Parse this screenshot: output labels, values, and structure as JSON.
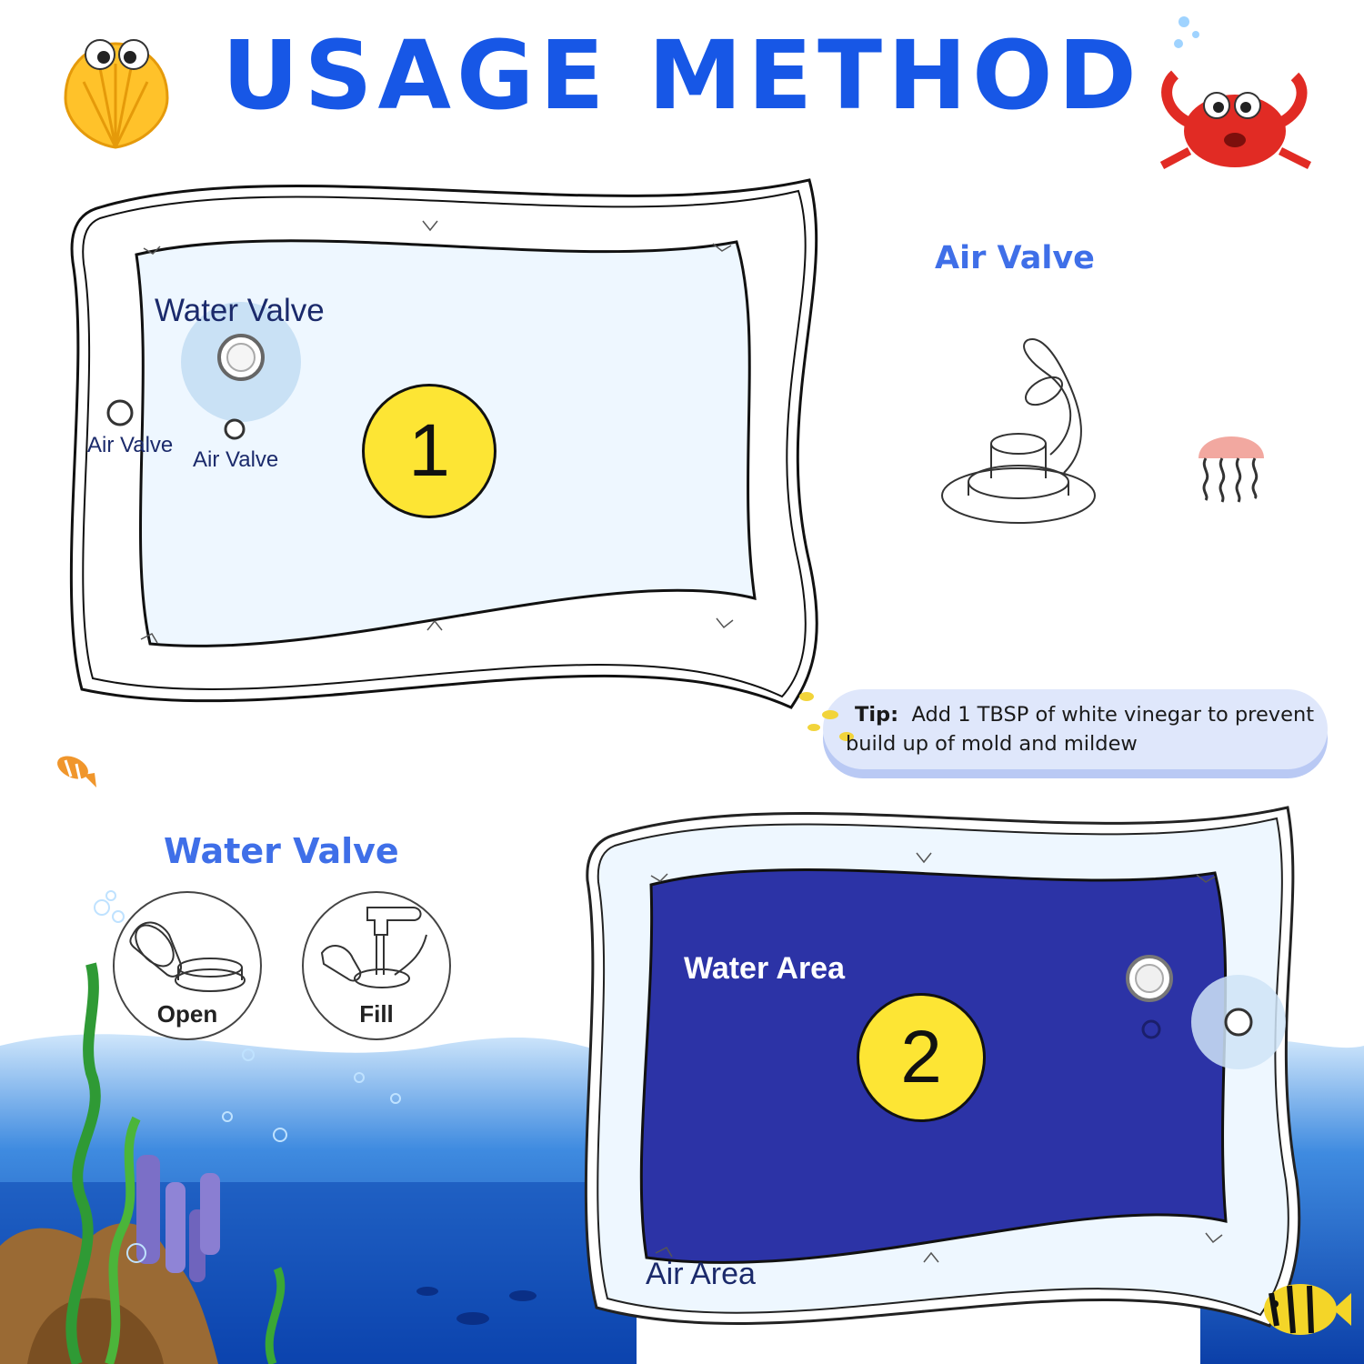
{
  "title": "USAGE METHOD",
  "colors": {
    "title_blue": "#1757e6",
    "heading_blue": "#3f6fe8",
    "mat_pale": "#eef7ff",
    "mat_water_blue": "#2c33a6",
    "number_badge": "#fde534",
    "ocean": "#1f6fd6",
    "tip_bubble": "#dfe7fb"
  },
  "step1": {
    "number": "1",
    "water_valve_label": "Water Valve",
    "air_valve_left_label": "Air Valve",
    "air_valve_right_label": "Air Valve"
  },
  "air_valve_panel": {
    "heading": "Air Valve"
  },
  "tip": {
    "prefix": "Tip:",
    "text": "Add 1 TBSP of white vinegar to prevent build up of mold and mildew"
  },
  "water_valve_panel": {
    "heading": "Water Valve",
    "steps": [
      {
        "label": "Open"
      },
      {
        "label": "Fill"
      }
    ]
  },
  "step2": {
    "number": "2",
    "water_area_label": "Water Area",
    "air_area_label": "Air Area"
  }
}
